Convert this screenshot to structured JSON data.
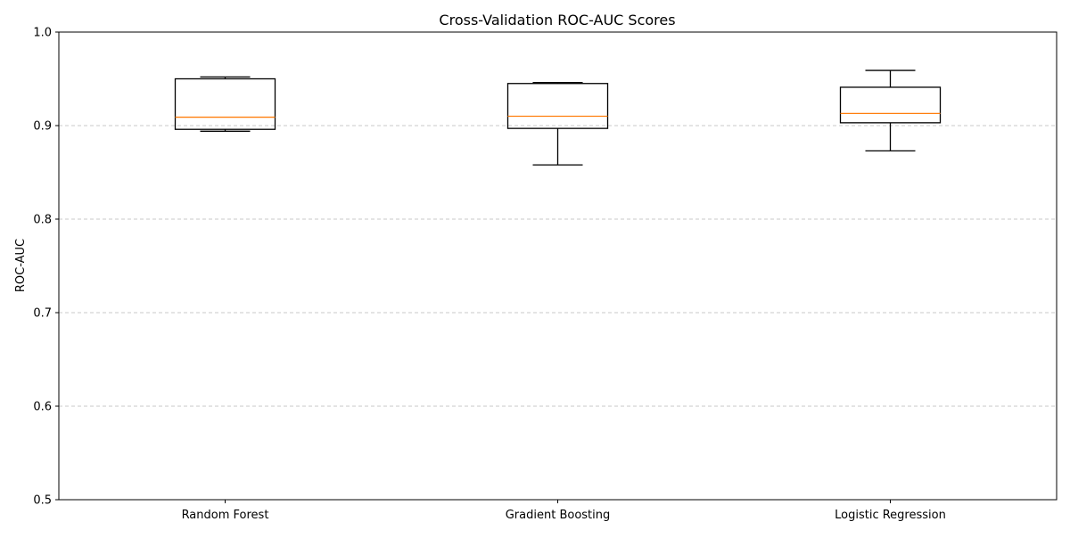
{
  "chart_data": {
    "type": "box",
    "title": "Cross-Validation ROC-AUC Scores",
    "xlabel": "",
    "ylabel": "ROC-AUC",
    "ylim": [
      0.5,
      1.0
    ],
    "yticks": [
      "0.5",
      "0.6",
      "0.7",
      "0.8",
      "0.9",
      "1.0"
    ],
    "ytick_values": [
      0.5,
      0.6,
      0.7,
      0.8,
      0.9,
      1.0
    ],
    "grid": "y, dashed",
    "categories": [
      "Random Forest",
      "Gradient Boosting",
      "Logistic Regression"
    ],
    "boxes": [
      {
        "category": "Random Forest",
        "whisker_low": 0.894,
        "q1": 0.896,
        "median": 0.909,
        "q3": 0.95,
        "whisker_high": 0.952
      },
      {
        "category": "Gradient Boosting",
        "whisker_low": 0.858,
        "q1": 0.897,
        "median": 0.91,
        "q3": 0.945,
        "whisker_high": 0.946
      },
      {
        "category": "Logistic Regression",
        "whisker_low": 0.873,
        "q1": 0.903,
        "median": 0.913,
        "q3": 0.941,
        "whisker_high": 0.959
      }
    ],
    "colors": {
      "box": "#000000",
      "median": "#ff7f0e",
      "grid": "#c8c8c8"
    }
  }
}
